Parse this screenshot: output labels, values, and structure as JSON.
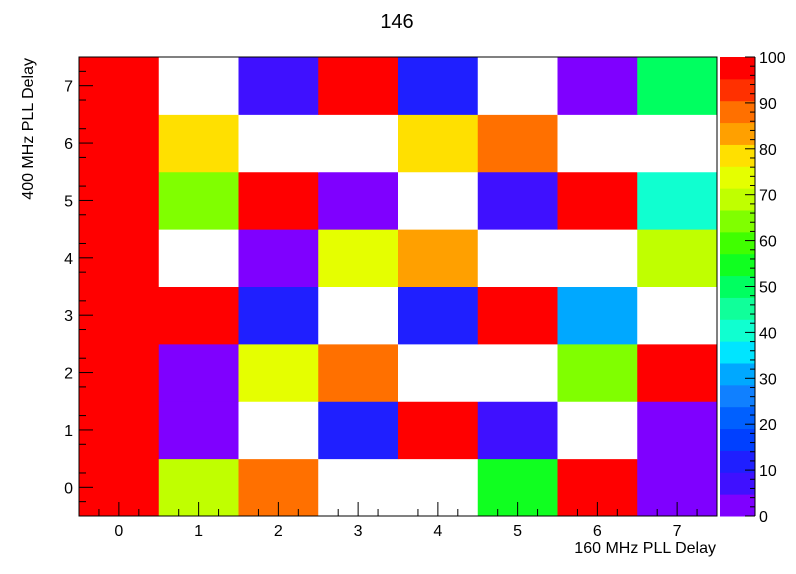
{
  "chart_data": {
    "type": "heatmap",
    "title": "146",
    "xlabel": "160 MHz PLL Delay",
    "ylabel": "400 MHz PLL Delay",
    "x_ticks": [
      "0",
      "1",
      "2",
      "3",
      "4",
      "5",
      "6",
      "7"
    ],
    "y_ticks": [
      "0",
      "1",
      "2",
      "3",
      "4",
      "5",
      "6",
      "7"
    ],
    "xlim": [
      -0.5,
      7.5
    ],
    "ylim": [
      -0.5,
      7.5
    ],
    "zlim": [
      0,
      100
    ],
    "z_ticks": [
      "0",
      "10",
      "20",
      "30",
      "40",
      "50",
      "60",
      "70",
      "80",
      "90",
      "100"
    ],
    "empty_cells_color": "#ffffff",
    "colorbar_levels": 20,
    "grid": false,
    "colorbar_position": "right",
    "rows_y0_to_y7": [
      [
        100,
        73,
        92,
        null,
        null,
        55,
        100,
        3
      ],
      [
        100,
        3,
        null,
        10,
        100,
        8,
        null,
        3
      ],
      [
        100,
        3,
        77,
        92,
        null,
        null,
        67,
        100
      ],
      [
        100,
        100,
        10,
        null,
        10,
        100,
        32,
        null
      ],
      [
        100,
        null,
        3,
        77,
        87,
        null,
        null,
        73
      ],
      [
        100,
        67,
        100,
        3,
        null,
        8,
        100,
        42
      ],
      [
        100,
        82,
        null,
        null,
        82,
        92,
        null,
        null
      ],
      [
        100,
        null,
        8,
        100,
        10,
        null,
        3,
        52
      ]
    ]
  }
}
